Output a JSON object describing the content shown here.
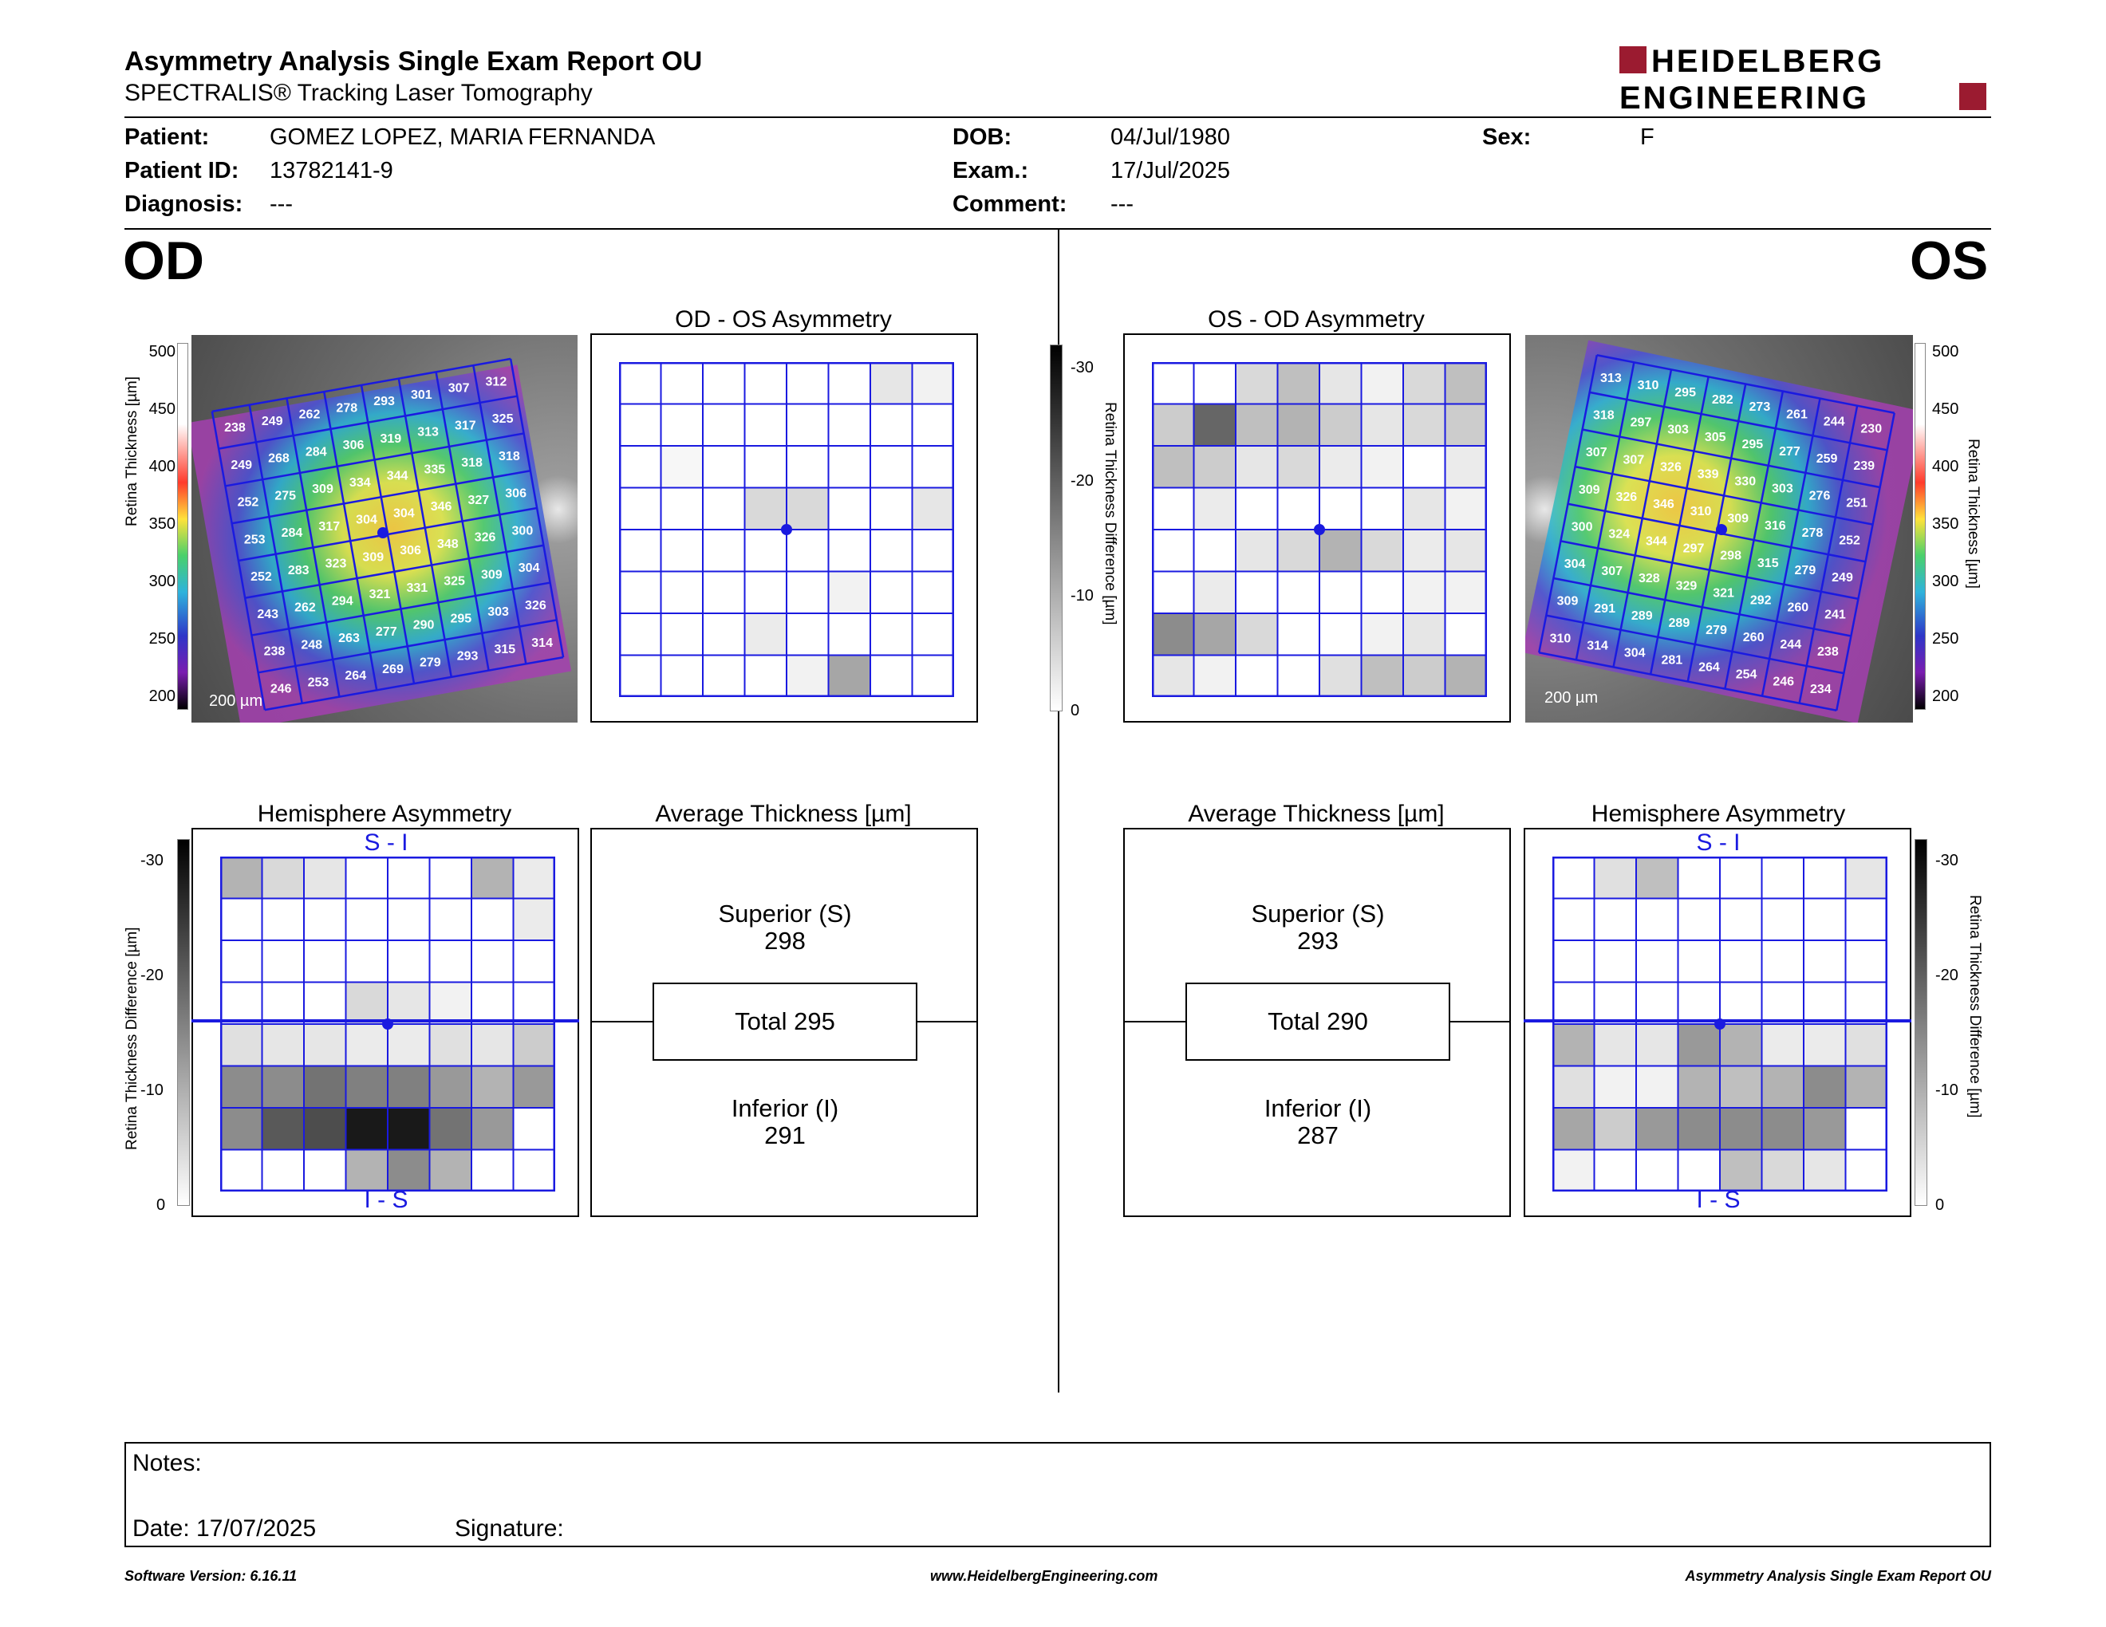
{
  "header": {
    "title": "Asymmetry Analysis Single Exam Report OU",
    "subtitle": "SPECTRALIS® Tracking Laser Tomography",
    "logo_line1": "HEIDELBERG",
    "logo_line2": "ENGINEERING",
    "brand_color": "#9b1b30"
  },
  "patient": {
    "patient_label": "Patient:",
    "patient_value": "GOMEZ LOPEZ, MARIA FERNANDA",
    "id_label": "Patient ID:",
    "id_value": "13782141-9",
    "diagnosis_label": "Diagnosis:",
    "diagnosis_value": "---",
    "dob_label": "DOB:",
    "dob_value": "04/Jul/1980",
    "exam_label": "Exam.:",
    "exam_value": "17/Jul/2025",
    "comment_label": "Comment:",
    "comment_value": "---",
    "sex_label": "Sex:",
    "sex_value": "F"
  },
  "od": {
    "eye_label": "OD",
    "asym_title": "OD - OS Asymmetry",
    "hemi_title": "Hemisphere Asymmetry",
    "avg_title": "Average Thickness [µm]",
    "superior_label": "Superior (S)",
    "superior_value": "298",
    "total_label": "Total 295",
    "inferior_label": "Inferior (I)",
    "inferior_value": "291",
    "si_label": "S - I",
    "is_label": "I - S",
    "scale_bar": "200 µm",
    "thickness_grid": [
      [
        "238",
        "249",
        "262",
        "278",
        "293",
        "301",
        "307",
        "312"
      ],
      [
        "249",
        "268",
        "284",
        "306",
        "319",
        "313",
        "317",
        "325"
      ],
      [
        "252",
        "275",
        "309",
        "334",
        "344",
        "335",
        "318",
        "318"
      ],
      [
        "253",
        "284",
        "317",
        "304",
        "304",
        "346",
        "327",
        "306"
      ],
      [
        "252",
        "283",
        "323",
        "309",
        "306",
        "348",
        "326",
        "300"
      ],
      [
        "243",
        "262",
        "294",
        "321",
        "331",
        "325",
        "309",
        "304"
      ],
      [
        "238",
        "248",
        "263",
        "277",
        "290",
        "295",
        "303",
        "326"
      ],
      [
        "246",
        "253",
        "264",
        "269",
        "279",
        "293",
        "315",
        "314"
      ]
    ],
    "asym_grid": [
      [
        0,
        0,
        0,
        0,
        0,
        0,
        0.1,
        0.05
      ],
      [
        0,
        0,
        0,
        0,
        0,
        0,
        0,
        0
      ],
      [
        0,
        0.03,
        0,
        0,
        0,
        0,
        0,
        0
      ],
      [
        0,
        0,
        0,
        0.15,
        0.15,
        0,
        0,
        0.1
      ],
      [
        0,
        0,
        0,
        0,
        0,
        0,
        0,
        0
      ],
      [
        0,
        0,
        0,
        0,
        0,
        0.05,
        0,
        0
      ],
      [
        0,
        0,
        0,
        0.08,
        0,
        0,
        0,
        0
      ],
      [
        0,
        0,
        0,
        0,
        0.05,
        0.35,
        0,
        0
      ]
    ],
    "hemi_grid": [
      [
        0.3,
        0.15,
        0.1,
        0,
        0,
        0,
        0.3,
        0.08
      ],
      [
        0,
        0,
        0,
        0,
        0,
        0,
        0,
        0.08
      ],
      [
        0,
        0,
        0,
        0,
        0,
        0,
        0,
        0
      ],
      [
        0,
        0,
        0,
        0.15,
        0.1,
        0.05,
        0,
        0
      ],
      [
        0.12,
        0.1,
        0.1,
        0.08,
        0.08,
        0.12,
        0.1,
        0.2
      ],
      [
        0.45,
        0.45,
        0.55,
        0.5,
        0.5,
        0.4,
        0.3,
        0.4
      ],
      [
        0.45,
        0.65,
        0.7,
        0.9,
        0.9,
        0.55,
        0.4,
        0
      ],
      [
        0,
        0,
        0,
        0.3,
        0.45,
        0.3,
        0,
        0
      ]
    ]
  },
  "os": {
    "eye_label": "OS",
    "asym_title": "OS - OD Asymmetry",
    "hemi_title": "Hemisphere Asymmetry",
    "avg_title": "Average Thickness [µm]",
    "superior_label": "Superior (S)",
    "superior_value": "293",
    "total_label": "Total 290",
    "inferior_label": "Inferior (I)",
    "inferior_value": "287",
    "si_label": "S - I",
    "is_label": "I - S",
    "scale_bar": "200 µm",
    "thickness_grid": [
      [
        "313",
        "310",
        "295",
        "282",
        "273",
        "261",
        "244",
        "230"
      ],
      [
        "318",
        "297",
        "303",
        "305",
        "295",
        "277",
        "259",
        "239"
      ],
      [
        "307",
        "307",
        "326",
        "339",
        "330",
        "303",
        "276",
        "251"
      ],
      [
        "309",
        "326",
        "346",
        "310",
        "309",
        "316",
        "278",
        "252"
      ],
      [
        "300",
        "324",
        "344",
        "297",
        "298",
        "315",
        "279",
        "249"
      ],
      [
        "304",
        "307",
        "328",
        "329",
        "321",
        "292",
        "260",
        "241"
      ],
      [
        "309",
        "291",
        "289",
        "289",
        "279",
        "260",
        "244",
        "238"
      ],
      [
        "310",
        "314",
        "304",
        "281",
        "264",
        "254",
        "246",
        "234"
      ]
    ],
    "asym_grid": [
      [
        0,
        0,
        0.15,
        0.25,
        0.1,
        0.05,
        0.15,
        0.25
      ],
      [
        0.2,
        0.6,
        0.25,
        0.3,
        0.2,
        0.1,
        0.15,
        0.2
      ],
      [
        0.25,
        0.2,
        0.1,
        0.15,
        0.08,
        0.05,
        0,
        0.08
      ],
      [
        0,
        0.08,
        0,
        0,
        0,
        0,
        0.1,
        0.05
      ],
      [
        0,
        0,
        0.1,
        0.15,
        0.3,
        0.15,
        0.08,
        0.1
      ],
      [
        0,
        0.08,
        0,
        0,
        0,
        0,
        0.05,
        0.05
      ],
      [
        0.45,
        0.35,
        0.15,
        0,
        0,
        0.05,
        0.1,
        0
      ],
      [
        0.1,
        0.05,
        0,
        0,
        0.12,
        0.25,
        0.2,
        0.3
      ]
    ],
    "hemi_grid": [
      [
        0,
        0.12,
        0.25,
        0,
        0,
        0,
        0,
        0.1
      ],
      [
        0,
        0,
        0,
        0,
        0,
        0,
        0,
        0
      ],
      [
        0,
        0,
        0,
        0,
        0,
        0,
        0,
        0
      ],
      [
        0,
        0,
        0,
        0,
        0,
        0,
        0,
        0
      ],
      [
        0.3,
        0.1,
        0.1,
        0.4,
        0.3,
        0.08,
        0.08,
        0.12
      ],
      [
        0.12,
        0.05,
        0.05,
        0.3,
        0.25,
        0.3,
        0.45,
        0.3
      ],
      [
        0.35,
        0.2,
        0.4,
        0.45,
        0.45,
        0.45,
        0.4,
        0
      ],
      [
        0.05,
        0,
        0,
        0,
        0.25,
        0.15,
        0.1,
        0
      ]
    ]
  },
  "colorbar": {
    "thickness_axis_label": "Retina Thickness [µm]",
    "thickness_ticks": [
      "500",
      "450",
      "400",
      "350",
      "300",
      "250",
      "200"
    ],
    "diff_axis_label": "Retina Thickness Difference [µm]",
    "diff_ticks": [
      "-30",
      "-20",
      "-10",
      "0"
    ]
  },
  "notes": {
    "notes_label": "Notes:",
    "date_label": "Date: 17/07/2025",
    "signature_label": "Signature:"
  },
  "footer": {
    "software": "Software Version: 6.16.11",
    "website": "www.HeidelbergEngineering.com",
    "report": "Asymmetry Analysis Single Exam Report OU"
  }
}
